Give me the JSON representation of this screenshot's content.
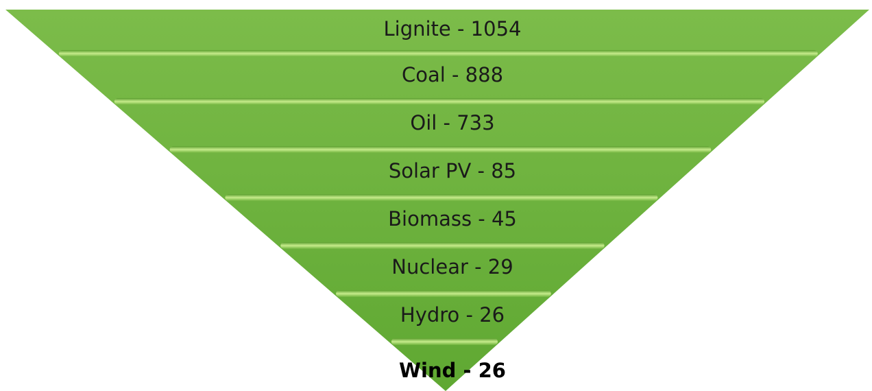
{
  "levels": [
    {
      "label": "Lignite - 1054"
    },
    {
      "label": "Coal - 888"
    },
    {
      "label": "Oil - 733"
    },
    {
      "label": "Solar PV - 85"
    },
    {
      "label": "Biomass - 45"
    },
    {
      "label": "Nuclear - 29"
    },
    {
      "label": "Hydro - 26"
    },
    {
      "label": "Wind - 26"
    }
  ]
}
